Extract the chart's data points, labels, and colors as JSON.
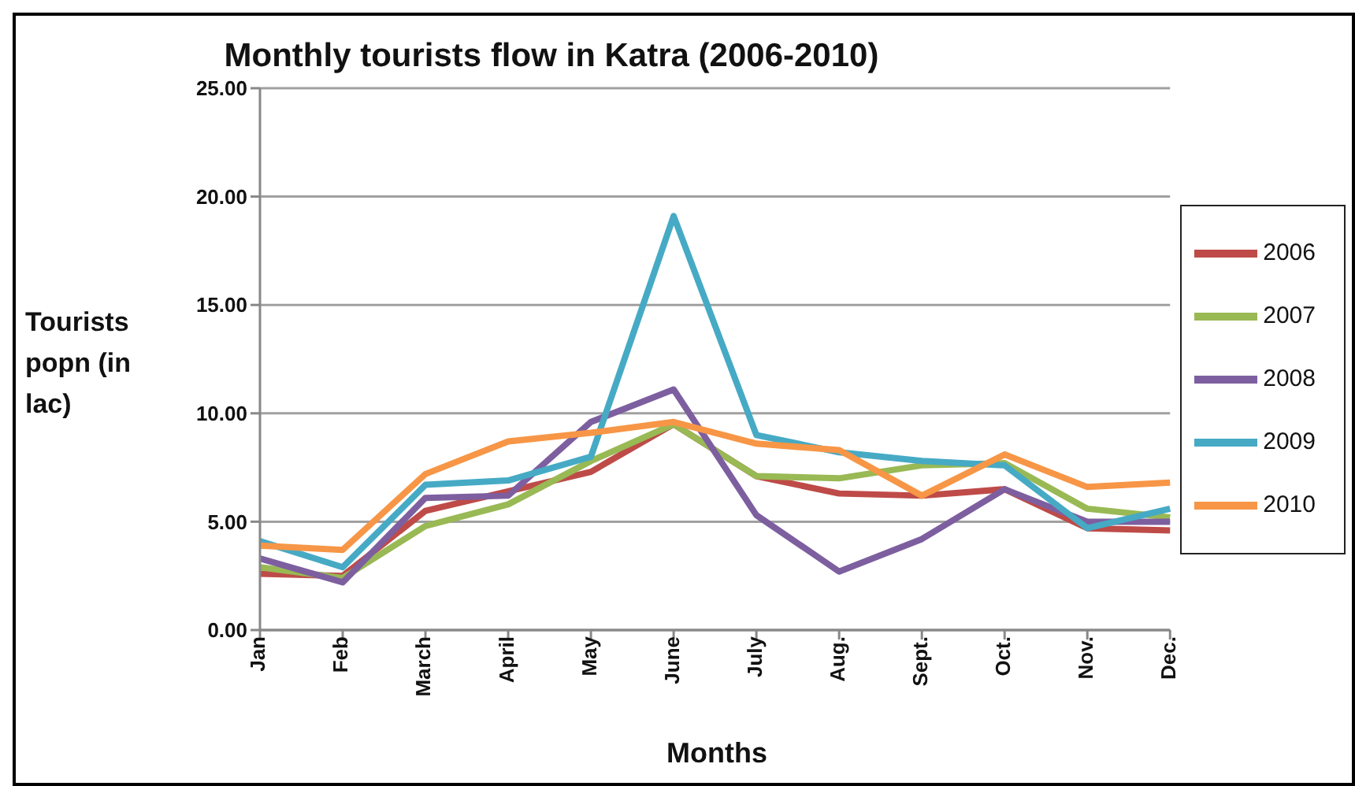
{
  "chart_data": {
    "type": "line",
    "title": "Monthly tourists flow in Katra (2006-2010)",
    "xlabel": "Months",
    "ylabel": "Tourists popn (in lac)",
    "categories": [
      "Jan",
      "Feb",
      "March",
      "April",
      "May",
      "June",
      "July",
      "Aug.",
      "Sept.",
      "Oct.",
      "Nov.",
      "Dec."
    ],
    "series": [
      {
        "name": "2006",
        "color": "#be4b48",
        "values": [
          2.6,
          2.5,
          5.5,
          6.4,
          7.3,
          9.5,
          7.1,
          6.3,
          6.2,
          6.5,
          4.7,
          4.6
        ]
      },
      {
        "name": "2007",
        "color": "#98b954",
        "values": [
          2.9,
          2.4,
          4.8,
          5.8,
          7.8,
          9.5,
          7.1,
          7.0,
          7.6,
          7.7,
          5.6,
          5.2
        ]
      },
      {
        "name": "2008",
        "color": "#7d5fa0",
        "values": [
          3.3,
          2.2,
          6.1,
          6.2,
          9.6,
          11.1,
          5.3,
          2.7,
          4.2,
          6.5,
          5.0,
          5.0
        ]
      },
      {
        "name": "2009",
        "color": "#46aac5",
        "values": [
          4.1,
          2.9,
          6.7,
          6.9,
          8.0,
          19.1,
          9.0,
          8.2,
          7.8,
          7.6,
          4.7,
          5.6
        ]
      },
      {
        "name": "2010",
        "color": "#f79646",
        "values": [
          3.9,
          3.7,
          7.2,
          8.7,
          9.1,
          9.6,
          8.6,
          8.3,
          6.2,
          8.1,
          6.6,
          6.8
        ]
      }
    ],
    "ylim": [
      0,
      25
    ],
    "yticks": [
      {
        "value": 0,
        "label": "0.00"
      },
      {
        "value": 5,
        "label": "5.00"
      },
      {
        "value": 10,
        "label": "10.00"
      },
      {
        "value": 15,
        "label": "15.00"
      },
      {
        "value": 20,
        "label": "20.00"
      },
      {
        "value": 25,
        "label": "25.00"
      }
    ],
    "grid": "y",
    "legend": "right",
    "marker": "none",
    "line_style": "solid"
  }
}
